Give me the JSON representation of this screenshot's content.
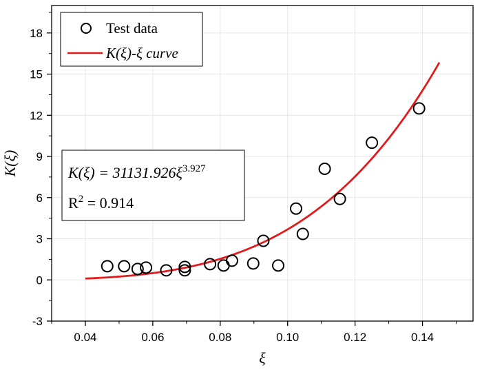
{
  "chart_data": {
    "type": "scatter",
    "xlabel": "ξ",
    "ylabel": "K(ξ)",
    "xlim": [
      0.03,
      0.155
    ],
    "ylim": [
      -3,
      20
    ],
    "xticks": [
      0.04,
      0.06,
      0.08,
      0.1,
      0.12,
      0.14
    ],
    "xtick_labels": [
      "0.04",
      "0.06",
      "0.08",
      "0.10",
      "0.12",
      "0.14"
    ],
    "yticks": [
      -3,
      0,
      3,
      6,
      9,
      12,
      15,
      18
    ],
    "ytick_labels": [
      "-3",
      "0",
      "3",
      "6",
      "9",
      "12",
      "15",
      "18"
    ],
    "grid": true,
    "legend_position": "top-left",
    "series": [
      {
        "name": "Test data",
        "kind": "scatter",
        "marker": "open-circle",
        "color": "#000000",
        "points": [
          [
            0.0465,
            1.0
          ],
          [
            0.0515,
            1.0
          ],
          [
            0.0555,
            0.8
          ],
          [
            0.058,
            0.9
          ],
          [
            0.064,
            0.7
          ],
          [
            0.0695,
            0.7
          ],
          [
            0.0695,
            0.95
          ],
          [
            0.077,
            1.15
          ],
          [
            0.081,
            1.05
          ],
          [
            0.0835,
            1.4
          ],
          [
            0.0898,
            1.2
          ],
          [
            0.0928,
            2.85
          ],
          [
            0.0972,
            1.05
          ],
          [
            0.1025,
            5.2
          ],
          [
            0.1045,
            3.35
          ],
          [
            0.111,
            8.1
          ],
          [
            0.1155,
            5.9
          ],
          [
            0.125,
            10.0
          ],
          [
            0.139,
            12.5
          ]
        ]
      },
      {
        "name": "K(ξ)-ξ curve",
        "kind": "line",
        "color": "#e31a1c",
        "equation": {
          "a": 31131.926,
          "b": 3.927
        },
        "x_range": [
          0.04,
          0.145
        ]
      }
    ],
    "annotation": {
      "equation_prefix": "K(ξ) = 31131.926ξ",
      "equation_exponent": "3.927",
      "r2_prefix": "R",
      "r2_sup": "2",
      "r2_suffix": " = 0.914"
    }
  }
}
